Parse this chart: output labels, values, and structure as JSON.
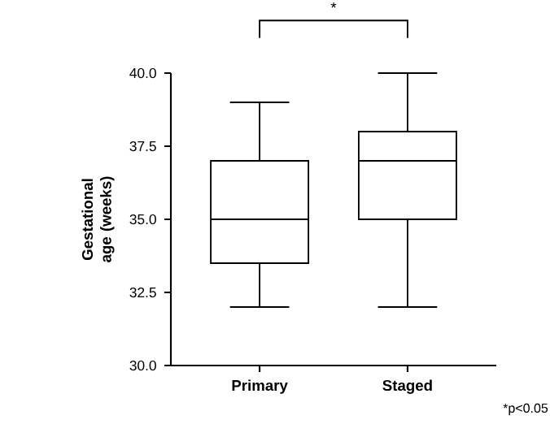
{
  "chart_data": {
    "type": "box",
    "ylabel": "Gestational age (weeks)",
    "categories": [
      "Primary",
      "Staged"
    ],
    "boxes": [
      {
        "low": 32,
        "q1": 33.5,
        "median": 35,
        "q3": 37,
        "high": 39
      },
      {
        "low": 32,
        "q1": 35,
        "median": 37,
        "q3": 38,
        "high": 40
      }
    ],
    "ylim": [
      30,
      40
    ],
    "yticks": [
      {
        "value": 30,
        "label": "30.0"
      },
      {
        "value": 32.5,
        "label": "32.5"
      },
      {
        "value": 35,
        "label": "35.0"
      },
      {
        "value": 37.5,
        "label": "37.5"
      },
      {
        "value": 40,
        "label": "40.0"
      }
    ],
    "grid": false,
    "annotations": [
      "*",
      "*p<0.05"
    ]
  }
}
